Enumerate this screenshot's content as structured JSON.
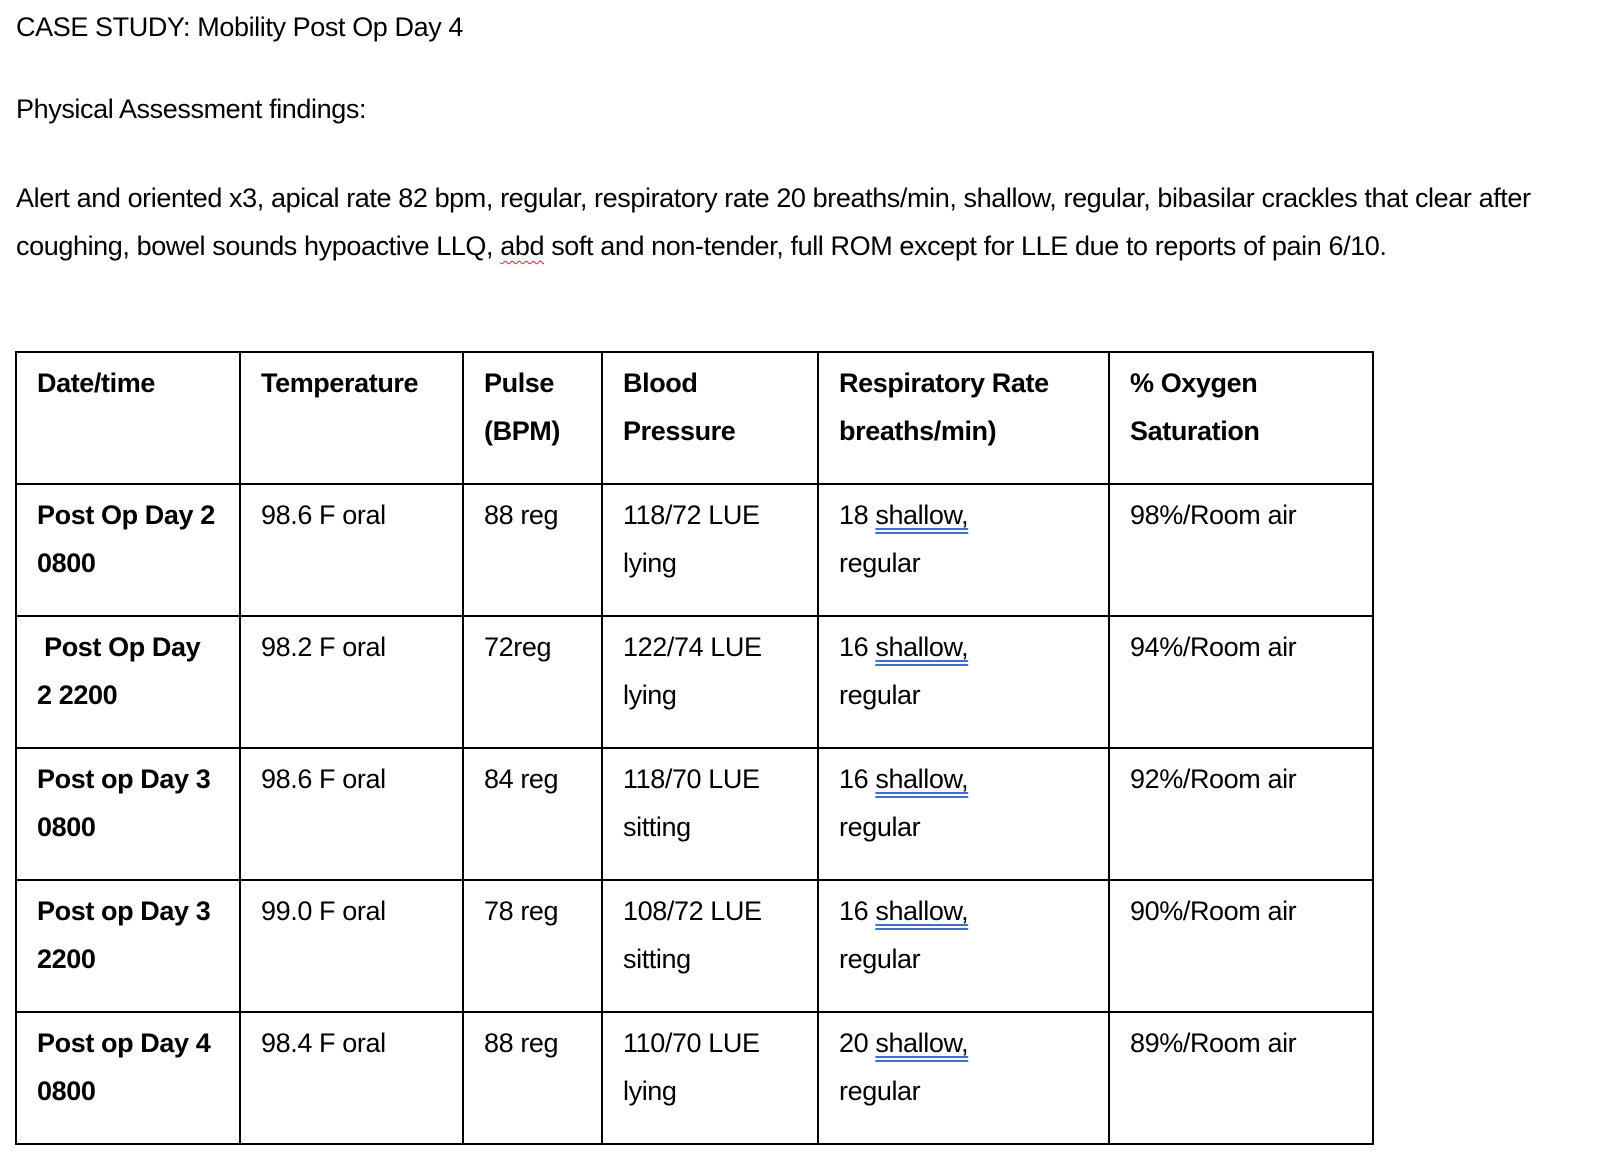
{
  "title": "CASE STUDY: Mobility Post Op Day 4",
  "subtitle": "Physical Assessment findings:",
  "findings": {
    "before": "Alert and oriented x3, apical rate 82 bpm, regular, respiratory rate 20 breaths/min, shallow, regular, bibasilar crackles that clear after coughing, bowel sounds hypoactive LLQ, ",
    "flagged": "abd",
    "after": " soft and non-tender, full ROM except for LLE due to reports of pain 6/10."
  },
  "table": {
    "headers": [
      "Date/time",
      "Temperature",
      "Pulse (BPM)",
      "Blood Pressure",
      "Respiratory Rate breaths/min)",
      "% Oxygen Saturation"
    ],
    "rows": [
      {
        "date": "Post Op Day 2 0800",
        "temp": "98.6 F oral",
        "pulse": "88 reg",
        "bp": "118/72 LUE lying",
        "rr_num": "18",
        "rr_flag": "shallow,",
        "rr_rest": "regular",
        "o2": "98%/Room air"
      },
      {
        "date": " Post Op Day 2 2200",
        "temp": "98.2 F oral",
        "pulse": "72reg",
        "bp": "122/74 LUE lying",
        "rr_num": "16",
        "rr_flag": "shallow,",
        "rr_rest": "regular",
        "o2": "94%/Room air"
      },
      {
        "date": "Post op Day 3 0800",
        "temp": "98.6 F oral",
        "pulse": "84 reg",
        "bp": "118/70 LUE sitting",
        "rr_num": "16",
        "rr_flag": "shallow,",
        "rr_rest": "regular",
        "o2": "92%/Room air"
      },
      {
        "date": "Post op Day 3 2200",
        "temp": "99.0 F oral",
        "pulse": "78 reg",
        "bp": "108/72 LUE sitting",
        "rr_num": "16",
        "rr_flag": "shallow,",
        "rr_rest": "regular",
        "o2": "90%/Room air"
      },
      {
        "date": "Post op Day 4 0800",
        "temp": "98.4 F oral",
        "pulse": "88 reg",
        "bp": "110/70 LUE lying",
        "rr_num": "20",
        "rr_flag": "shallow,",
        "rr_rest": "regular",
        "o2": "89%/Room air"
      }
    ]
  }
}
